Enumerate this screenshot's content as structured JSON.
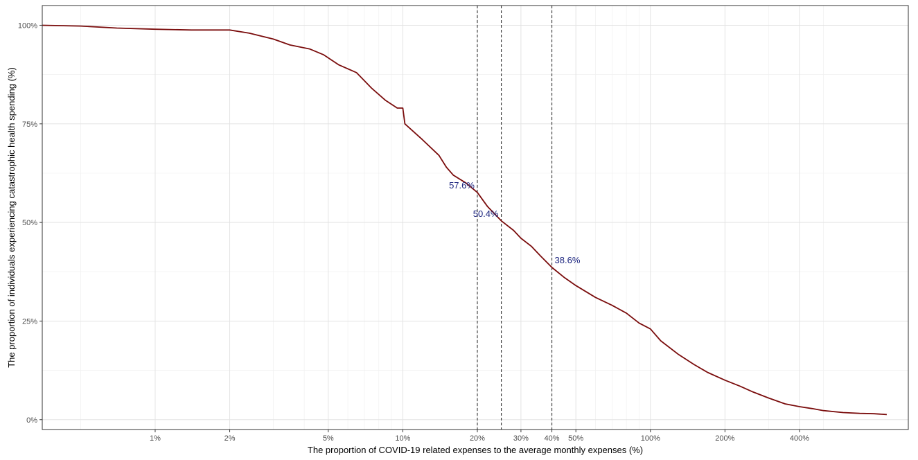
{
  "chart_data": {
    "type": "line",
    "title": "",
    "xlabel": "The proportion of COVID-19 related expenses to the average monthly expenses (%)",
    "ylabel": "The proportion of individuals experiencing catastrophic health spending (%)",
    "x_scale": "log",
    "xlim": [
      0.0035,
      11
    ],
    "ylim": [
      -0.025,
      1.05
    ],
    "x_ticks": [
      {
        "value": 0.01,
        "label": "1%"
      },
      {
        "value": 0.02,
        "label": "2%"
      },
      {
        "value": 0.05,
        "label": "5%"
      },
      {
        "value": 0.1,
        "label": "10%"
      },
      {
        "value": 0.2,
        "label": "20%"
      },
      {
        "value": 0.3,
        "label": "30%"
      },
      {
        "value": 0.4,
        "label": "40%"
      },
      {
        "value": 0.5,
        "label": "50%"
      },
      {
        "value": 1.0,
        "label": "100%"
      },
      {
        "value": 2.0,
        "label": "200%"
      },
      {
        "value": 4.0,
        "label": "400%"
      }
    ],
    "x_minor_grid": [
      0.005,
      0.03,
      0.04,
      0.06,
      0.07,
      0.08,
      0.09,
      0.6,
      0.7,
      0.8,
      0.9,
      3.0,
      5.0
    ],
    "y_ticks": [
      {
        "value": 0,
        "label": "0%"
      },
      {
        "value": 0.25,
        "label": "25%"
      },
      {
        "value": 0.5,
        "label": "50%"
      },
      {
        "value": 0.75,
        "label": "75%"
      },
      {
        "value": 1.0,
        "label": "100%"
      }
    ],
    "grid": true,
    "series": [
      {
        "color": "#7a0c0c",
        "x": [
          0.0035,
          0.005,
          0.007,
          0.01,
          0.014,
          0.02,
          0.024,
          0.03,
          0.035,
          0.042,
          0.048,
          0.055,
          0.065,
          0.075,
          0.085,
          0.095,
          0.1,
          0.102,
          0.12,
          0.14,
          0.15,
          0.16,
          0.18,
          0.2,
          0.22,
          0.25,
          0.28,
          0.3,
          0.33,
          0.36,
          0.4,
          0.45,
          0.5,
          0.6,
          0.7,
          0.8,
          0.9,
          1.0,
          1.1,
          1.3,
          1.5,
          1.7,
          2.0,
          2.3,
          2.6,
          3.0,
          3.5,
          4.0,
          4.5,
          5.0,
          6.0,
          7.0,
          8.0,
          9.0
        ],
        "y": [
          1.0,
          0.998,
          0.993,
          0.99,
          0.988,
          0.988,
          0.98,
          0.965,
          0.95,
          0.94,
          0.925,
          0.9,
          0.88,
          0.84,
          0.81,
          0.79,
          0.79,
          0.75,
          0.71,
          0.67,
          0.64,
          0.62,
          0.6,
          0.576,
          0.54,
          0.504,
          0.48,
          0.46,
          0.44,
          0.415,
          0.386,
          0.36,
          0.34,
          0.31,
          0.29,
          0.27,
          0.245,
          0.23,
          0.2,
          0.165,
          0.14,
          0.12,
          0.1,
          0.085,
          0.07,
          0.055,
          0.04,
          0.033,
          0.028,
          0.023,
          0.018,
          0.016,
          0.015,
          0.013
        ]
      }
    ],
    "reference_lines": [
      {
        "x": 0.2,
        "label": "57.6%",
        "label_y": 0.576,
        "label_side": "left"
      },
      {
        "x": 0.25,
        "label": "50.4%",
        "label_y": 0.504,
        "label_side": "left"
      },
      {
        "x": 0.4,
        "label": "38.6%",
        "label_y": 0.386,
        "label_side": "right"
      }
    ],
    "annotation_color": "#1a237e"
  }
}
